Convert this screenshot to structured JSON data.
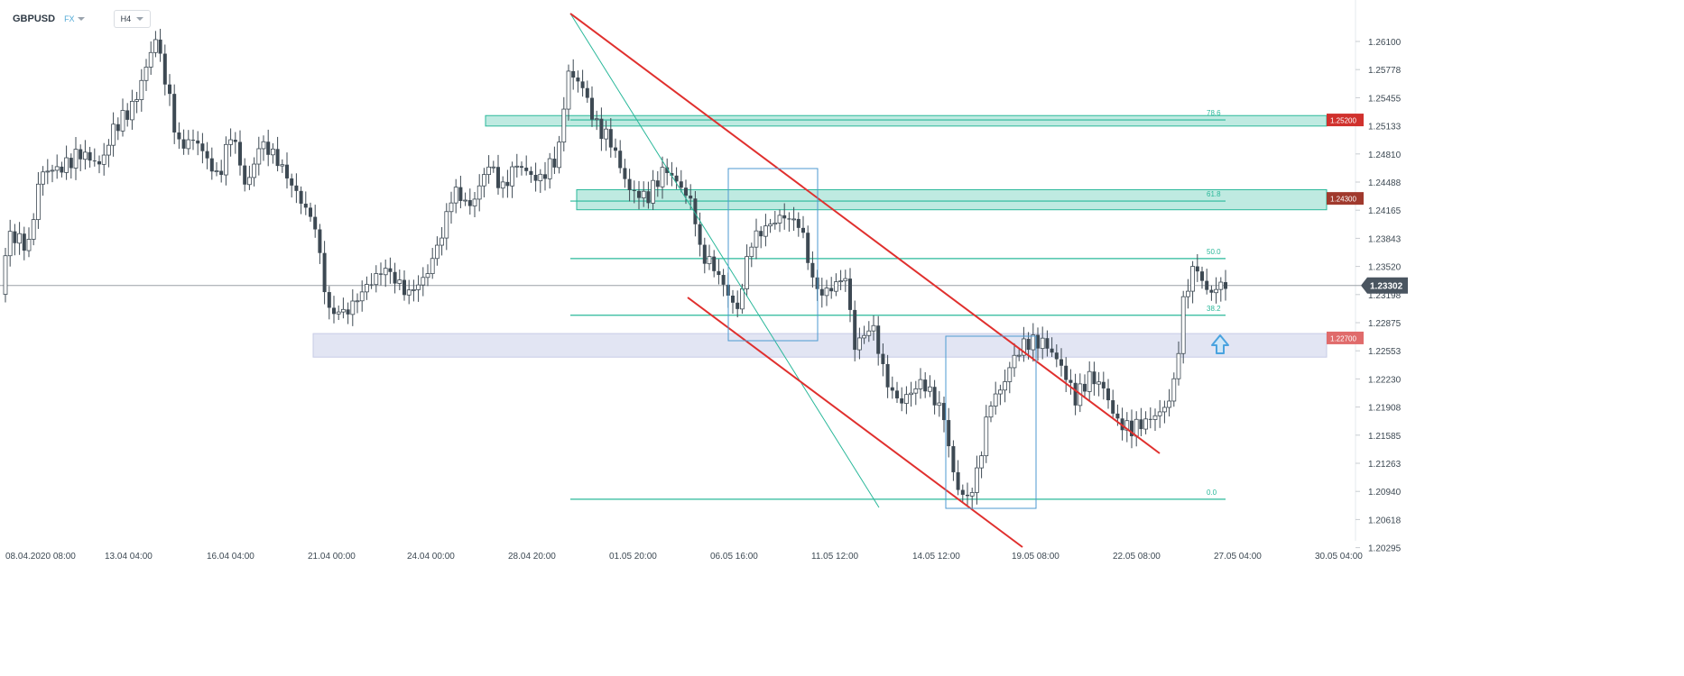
{
  "symbol": {
    "name": "GBPUSD",
    "exchange": "FX",
    "timeframe": "H4"
  },
  "chart_data": {
    "type": "candlestick",
    "y_ticks": [
      "1.26100",
      "1.25778",
      "1.25455",
      "1.25133",
      "1.24810",
      "1.24488",
      "1.24165",
      "1.23843",
      "1.23520",
      "1.23198",
      "1.22875",
      "1.22553",
      "1.22230",
      "1.21908",
      "1.21585",
      "1.21263",
      "1.20940",
      "1.20618",
      "1.20295"
    ],
    "x_ticks": [
      "08.04.2020  08:00",
      "13.04  04:00",
      "16.04  04:00",
      "21.04  00:00",
      "24.04  00:00",
      "28.04  20:00",
      "01.05  20:00",
      "06.05  16:00",
      "11.05  12:00",
      "14.05  12:00",
      "19.05  08:00",
      "22.05  08:00",
      "27.05  04:00",
      "30.05  04:00"
    ],
    "ylim": [
      1.2007,
      1.264
    ],
    "current_price": "1.23302",
    "levels": [
      {
        "price": 1.252,
        "label": "1.25200",
        "color": "#d0312d"
      },
      {
        "price": 1.243,
        "label": "1.24300",
        "color": "#a0392d"
      },
      {
        "price": 1.227,
        "label": "1.22700",
        "color": "#e06b6b"
      }
    ],
    "fibonacci": [
      {
        "ratio": "78.6",
        "price": 1.252
      },
      {
        "ratio": "61.8",
        "price": 1.2427
      },
      {
        "ratio": "50.0",
        "price": 1.2361
      },
      {
        "ratio": "38.2",
        "price": 1.2296
      },
      {
        "ratio": "0.0",
        "price": 1.2085
      }
    ],
    "colors": {
      "bear": "#3d4953",
      "bull": "#ffffff",
      "bull_edge": "#3d4953",
      "fib": "#2ab89a",
      "trend": "#e0302e",
      "zone_green": "#2ab89a",
      "zone_purple": "#9fa8d6",
      "box": "#4c9ad1",
      "arrow": "#4aa3df"
    },
    "candles": []
  }
}
